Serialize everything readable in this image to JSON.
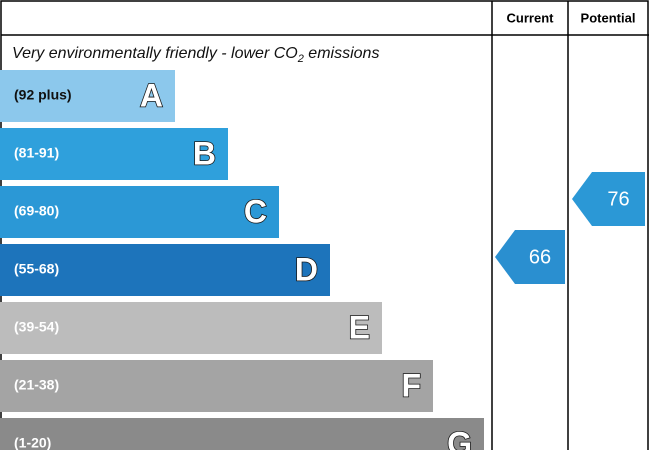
{
  "header": {
    "current": "Current",
    "potential": "Potential"
  },
  "title": {
    "text": "Very environmentally friendly - lower CO",
    "subscript": "2",
    "rest": " emissions"
  },
  "bands": [
    {
      "range": "(92 plus)",
      "letter": "A",
      "color": "#8cc8ec"
    },
    {
      "range": "(81-91)",
      "letter": "B",
      "color": "#2fa0dc"
    },
    {
      "range": "(69-80)",
      "letter": "C",
      "color": "#2b98d6"
    },
    {
      "range": "(55-68)",
      "letter": "D",
      "color": "#1d74bb"
    },
    {
      "range": "(39-54)",
      "letter": "E",
      "color": "#bcbcbc"
    },
    {
      "range": "(21-38)",
      "letter": "F",
      "color": "#a4a4a4"
    },
    {
      "range": "(1-20)",
      "letter": "G",
      "color": "#8a8a8a"
    }
  ],
  "current": {
    "value": "66",
    "color": "#2a8fd0"
  },
  "potential": {
    "value": "76",
    "color": "#2b98d6"
  }
}
